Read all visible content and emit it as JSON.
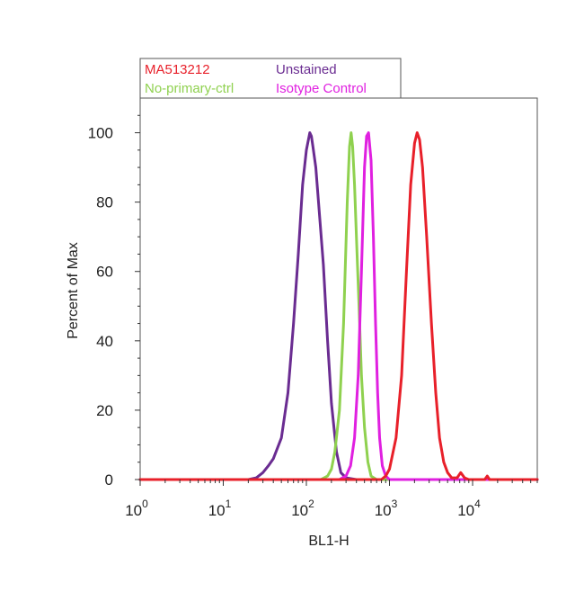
{
  "chart_data": {
    "type": "line",
    "xlabel": "BL1-H",
    "ylabel": "Percent of Max",
    "x_scale": "log",
    "xlim": [
      1,
      60000
    ],
    "ylim": [
      0,
      110
    ],
    "x_ticks": [
      {
        "value": 1,
        "base": "10",
        "exp": "0"
      },
      {
        "value": 10,
        "base": "10",
        "exp": "1"
      },
      {
        "value": 100,
        "base": "10",
        "exp": "2"
      },
      {
        "value": 1000,
        "base": "10",
        "exp": "3"
      },
      {
        "value": 10000,
        "base": "10",
        "exp": "4"
      }
    ],
    "y_ticks": [
      0,
      20,
      40,
      60,
      80,
      100
    ],
    "grid": false,
    "legend_position": "top-left",
    "legend": [
      {
        "label": "MA513212",
        "color": "#e8202a"
      },
      {
        "label": "Unstained",
        "color": "#6a2c91"
      },
      {
        "label": "No-primary-ctrl",
        "color": "#8fd14f"
      },
      {
        "label": "Isotype Control",
        "color": "#e020e0"
      }
    ],
    "series": [
      {
        "name": "Unstained",
        "color": "#6a2c91",
        "x": [
          1,
          20,
          25,
          30,
          35,
          40,
          50,
          60,
          70,
          80,
          90,
          100,
          110,
          115,
          120,
          130,
          140,
          160,
          180,
          200,
          230,
          260,
          300,
          400,
          1000,
          60000
        ],
        "y": [
          0,
          0,
          0.5,
          2,
          4,
          6,
          12,
          25,
          45,
          65,
          85,
          95,
          100,
          99,
          96,
          90,
          80,
          62,
          40,
          22,
          8,
          2,
          0.5,
          0,
          0,
          0
        ]
      },
      {
        "name": "No-primary-ctrl",
        "color": "#8fd14f",
        "x": [
          1,
          150,
          180,
          200,
          220,
          250,
          280,
          310,
          330,
          345,
          360,
          380,
          400,
          430,
          460,
          500,
          550,
          600,
          700,
          60000
        ],
        "y": [
          0,
          0,
          1,
          3,
          8,
          20,
          45,
          80,
          96,
          100,
          96,
          85,
          70,
          50,
          30,
          15,
          5,
          1,
          0,
          0
        ]
      },
      {
        "name": "Isotype Control",
        "color": "#e020e0",
        "x": [
          1,
          250,
          300,
          340,
          380,
          420,
          460,
          500,
          530,
          560,
          600,
          640,
          680,
          720,
          760,
          820,
          900,
          1000,
          60000
        ],
        "y": [
          0,
          0,
          1,
          4,
          12,
          30,
          60,
          90,
          99,
          100,
          92,
          70,
          45,
          25,
          12,
          4,
          1,
          0,
          0
        ]
      },
      {
        "name": "MA513212",
        "color": "#e8202a",
        "x": [
          1,
          800,
          900,
          1000,
          1200,
          1400,
          1600,
          1800,
          2000,
          2150,
          2300,
          2500,
          2800,
          3200,
          3600,
          4000,
          4500,
          5000,
          5600,
          6500,
          7200,
          8000,
          9000,
          14000,
          15000,
          16000,
          60000
        ],
        "y": [
          0,
          0,
          1,
          3,
          12,
          30,
          60,
          85,
          97,
          100,
          98,
          90,
          70,
          45,
          25,
          12,
          5,
          2,
          0.5,
          0.5,
          2,
          0.5,
          0,
          0,
          1,
          0,
          0
        ]
      }
    ]
  }
}
